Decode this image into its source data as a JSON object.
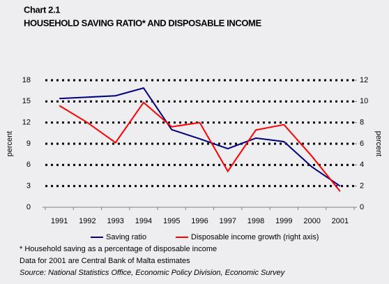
{
  "chart_data": {
    "type": "line",
    "title": "Chart 2.1",
    "subtitle": "HOUSEHOLD SAVING RATIO* AND DISPOSABLE INCOME",
    "ylabel": "percent",
    "y2label": "percent",
    "categories": [
      "1991",
      "1992",
      "1993",
      "1994",
      "1995",
      "1996",
      "1997",
      "1998",
      "1999",
      "2000",
      "2001"
    ],
    "series": [
      {
        "name": "Saving ratio",
        "color": "#000080",
        "values": [
          15.4,
          15.6,
          15.8,
          16.9,
          11.0,
          9.7,
          8.3,
          9.8,
          9.3,
          5.7,
          3.0
        ]
      },
      {
        "name": "Disposable income growth (right axis)",
        "color": "#ff0000",
        "axis": "y2",
        "values": [
          9.6,
          8.0,
          6.1,
          9.9,
          7.6,
          8.0,
          3.4,
          7.3,
          7.8,
          4.8,
          1.5
        ]
      }
    ],
    "ylim": [
      0,
      18
    ],
    "yticks": [
      0,
      3,
      6,
      9,
      12,
      15,
      18
    ],
    "y2lim": [
      0,
      12
    ],
    "y2ticks": [
      0,
      2,
      4,
      6,
      8,
      10,
      12
    ],
    "grid": true,
    "legend": "bottom",
    "notes": [
      "* Household saving as a percentage of disposable income",
      "Data for 2001 are Central Bank of Malta estimates",
      "Source: National Statistics Office, Economic Policy Division, Economic Survey"
    ]
  }
}
